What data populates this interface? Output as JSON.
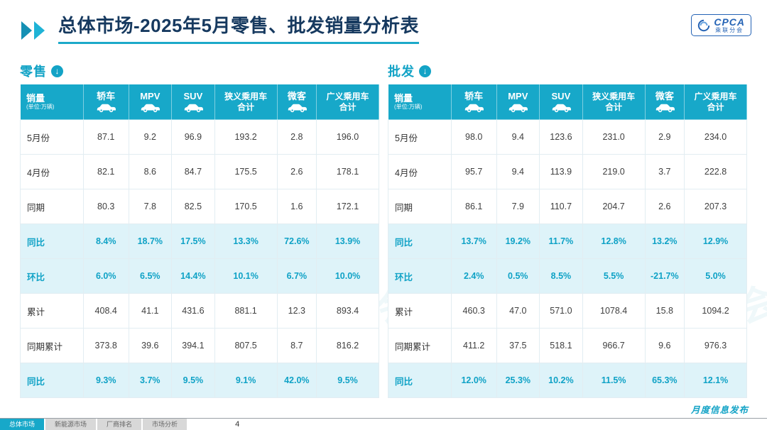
{
  "page": {
    "title": "总体市场-2025年5月零售、批发销量分析表",
    "logo": {
      "brand": "CPCA",
      "sub": "乘联分会"
    },
    "watermark": "乘联分会"
  },
  "table_header": {
    "col0_title": "销量",
    "col0_sub": "(单位:万辆)",
    "cols": [
      {
        "label": "轿车",
        "icon": "car-icon"
      },
      {
        "label": "MPV",
        "icon": "car-icon"
      },
      {
        "label": "SUV",
        "icon": "car-icon"
      },
      {
        "label": "狭义乘用车",
        "label2": "合计"
      },
      {
        "label": "微客",
        "icon": "car-icon"
      },
      {
        "label": "广义乘用车",
        "label2": "合计"
      }
    ]
  },
  "tables": [
    {
      "name": "零售",
      "rows": [
        {
          "label": "5月份",
          "highlight": false,
          "values": [
            "87.1",
            "9.2",
            "96.9",
            "193.2",
            "2.8",
            "196.0"
          ]
        },
        {
          "label": "4月份",
          "highlight": false,
          "values": [
            "82.1",
            "8.6",
            "84.7",
            "175.5",
            "2.6",
            "178.1"
          ]
        },
        {
          "label": "同期",
          "highlight": false,
          "values": [
            "80.3",
            "7.8",
            "82.5",
            "170.5",
            "1.6",
            "172.1"
          ]
        },
        {
          "label": "同比",
          "highlight": true,
          "values": [
            "8.4%",
            "18.7%",
            "17.5%",
            "13.3%",
            "72.6%",
            "13.9%"
          ]
        },
        {
          "label": "环比",
          "highlight": true,
          "values": [
            "6.0%",
            "6.5%",
            "14.4%",
            "10.1%",
            "6.7%",
            "10.0%"
          ]
        },
        {
          "label": "累计",
          "highlight": false,
          "values": [
            "408.4",
            "41.1",
            "431.6",
            "881.1",
            "12.3",
            "893.4"
          ]
        },
        {
          "label": "同期累计",
          "highlight": false,
          "values": [
            "373.8",
            "39.6",
            "394.1",
            "807.5",
            "8.7",
            "816.2"
          ]
        },
        {
          "label": "同比",
          "highlight": true,
          "values": [
            "9.3%",
            "3.7%",
            "9.5%",
            "9.1%",
            "42.0%",
            "9.5%"
          ]
        }
      ]
    },
    {
      "name": "批发",
      "rows": [
        {
          "label": "5月份",
          "highlight": false,
          "values": [
            "98.0",
            "9.4",
            "123.6",
            "231.0",
            "2.9",
            "234.0"
          ]
        },
        {
          "label": "4月份",
          "highlight": false,
          "values": [
            "95.7",
            "9.4",
            "113.9",
            "219.0",
            "3.7",
            "222.8"
          ]
        },
        {
          "label": "同期",
          "highlight": false,
          "values": [
            "86.1",
            "7.9",
            "110.7",
            "204.7",
            "2.6",
            "207.3"
          ]
        },
        {
          "label": "同比",
          "highlight": true,
          "values": [
            "13.7%",
            "19.2%",
            "11.7%",
            "12.8%",
            "13.2%",
            "12.9%"
          ]
        },
        {
          "label": "环比",
          "highlight": true,
          "values": [
            "2.4%",
            "0.5%",
            "8.5%",
            "5.5%",
            "-21.7%",
            "5.0%"
          ]
        },
        {
          "label": "累计",
          "highlight": false,
          "values": [
            "460.3",
            "47.0",
            "571.0",
            "1078.4",
            "15.8",
            "1094.2"
          ]
        },
        {
          "label": "同期累计",
          "highlight": false,
          "values": [
            "411.2",
            "37.5",
            "518.1",
            "966.7",
            "9.6",
            "976.3"
          ]
        },
        {
          "label": "同比",
          "highlight": true,
          "values": [
            "12.0%",
            "25.3%",
            "10.2%",
            "11.5%",
            "65.3%",
            "12.1%"
          ]
        }
      ]
    }
  ],
  "footer": {
    "tabs": [
      {
        "label": "总体市场",
        "active": true
      },
      {
        "label": "新能源市场",
        "active": false
      },
      {
        "label": "厂商排名",
        "active": false
      },
      {
        "label": "市场分析",
        "active": false
      }
    ],
    "publish_label": "月度信息发布",
    "page_number": "4"
  },
  "colors": {
    "teal": "#17a8c9",
    "highlight_bg": "#def3f9",
    "title_navy": "#16395f",
    "logo_blue": "#2463b5"
  }
}
